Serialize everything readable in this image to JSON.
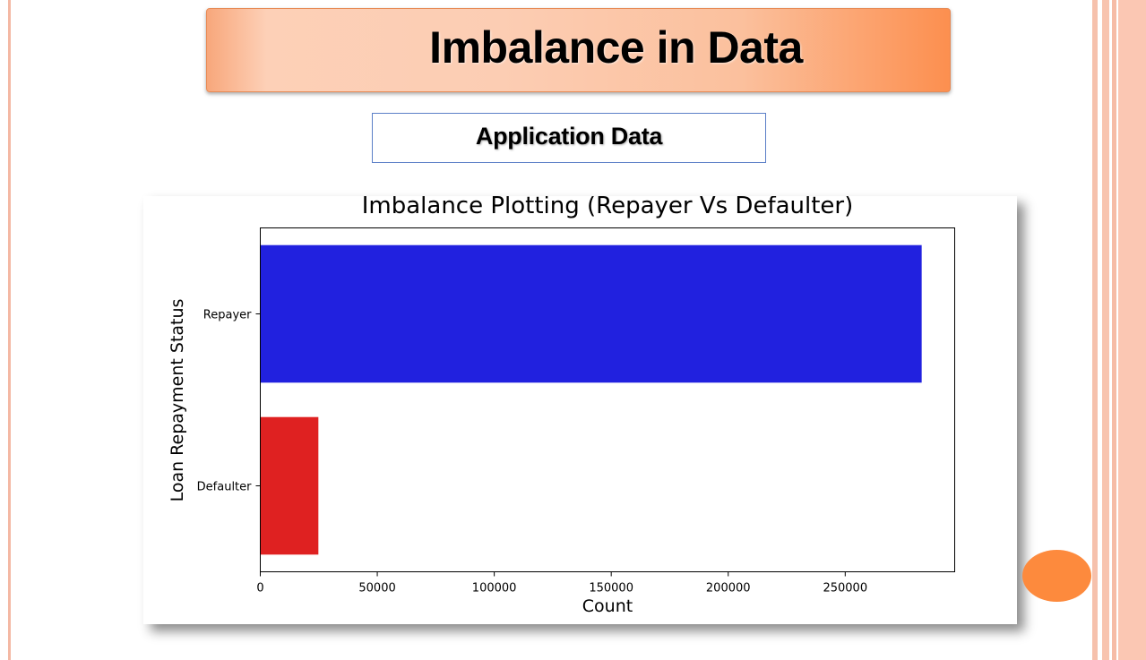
{
  "slide": {
    "title": "Imbalance in Data",
    "subtitle": "Application Data"
  },
  "colors": {
    "accent_orange": "#fd8a3d",
    "title_gradient_end": "#fc8f4f",
    "border_pink": "#f4b8a4"
  },
  "chart_data": {
    "type": "bar",
    "orientation": "horizontal",
    "title": "Imbalance Plotting (Repayer Vs Defaulter)",
    "xlabel": "Count",
    "ylabel": "Loan Repayment Status",
    "categories": [
      "Repayer",
      "Defaulter"
    ],
    "values": [
      282686,
      24825
    ],
    "colors": [
      "#2121df",
      "#df2121"
    ],
    "xlim": [
      0,
      296800
    ],
    "xticks": [
      0,
      50000,
      100000,
      150000,
      200000,
      250000
    ],
    "xtick_labels": [
      "0",
      "50000",
      "100000",
      "150000",
      "200000",
      "250000"
    ],
    "grid": false
  }
}
